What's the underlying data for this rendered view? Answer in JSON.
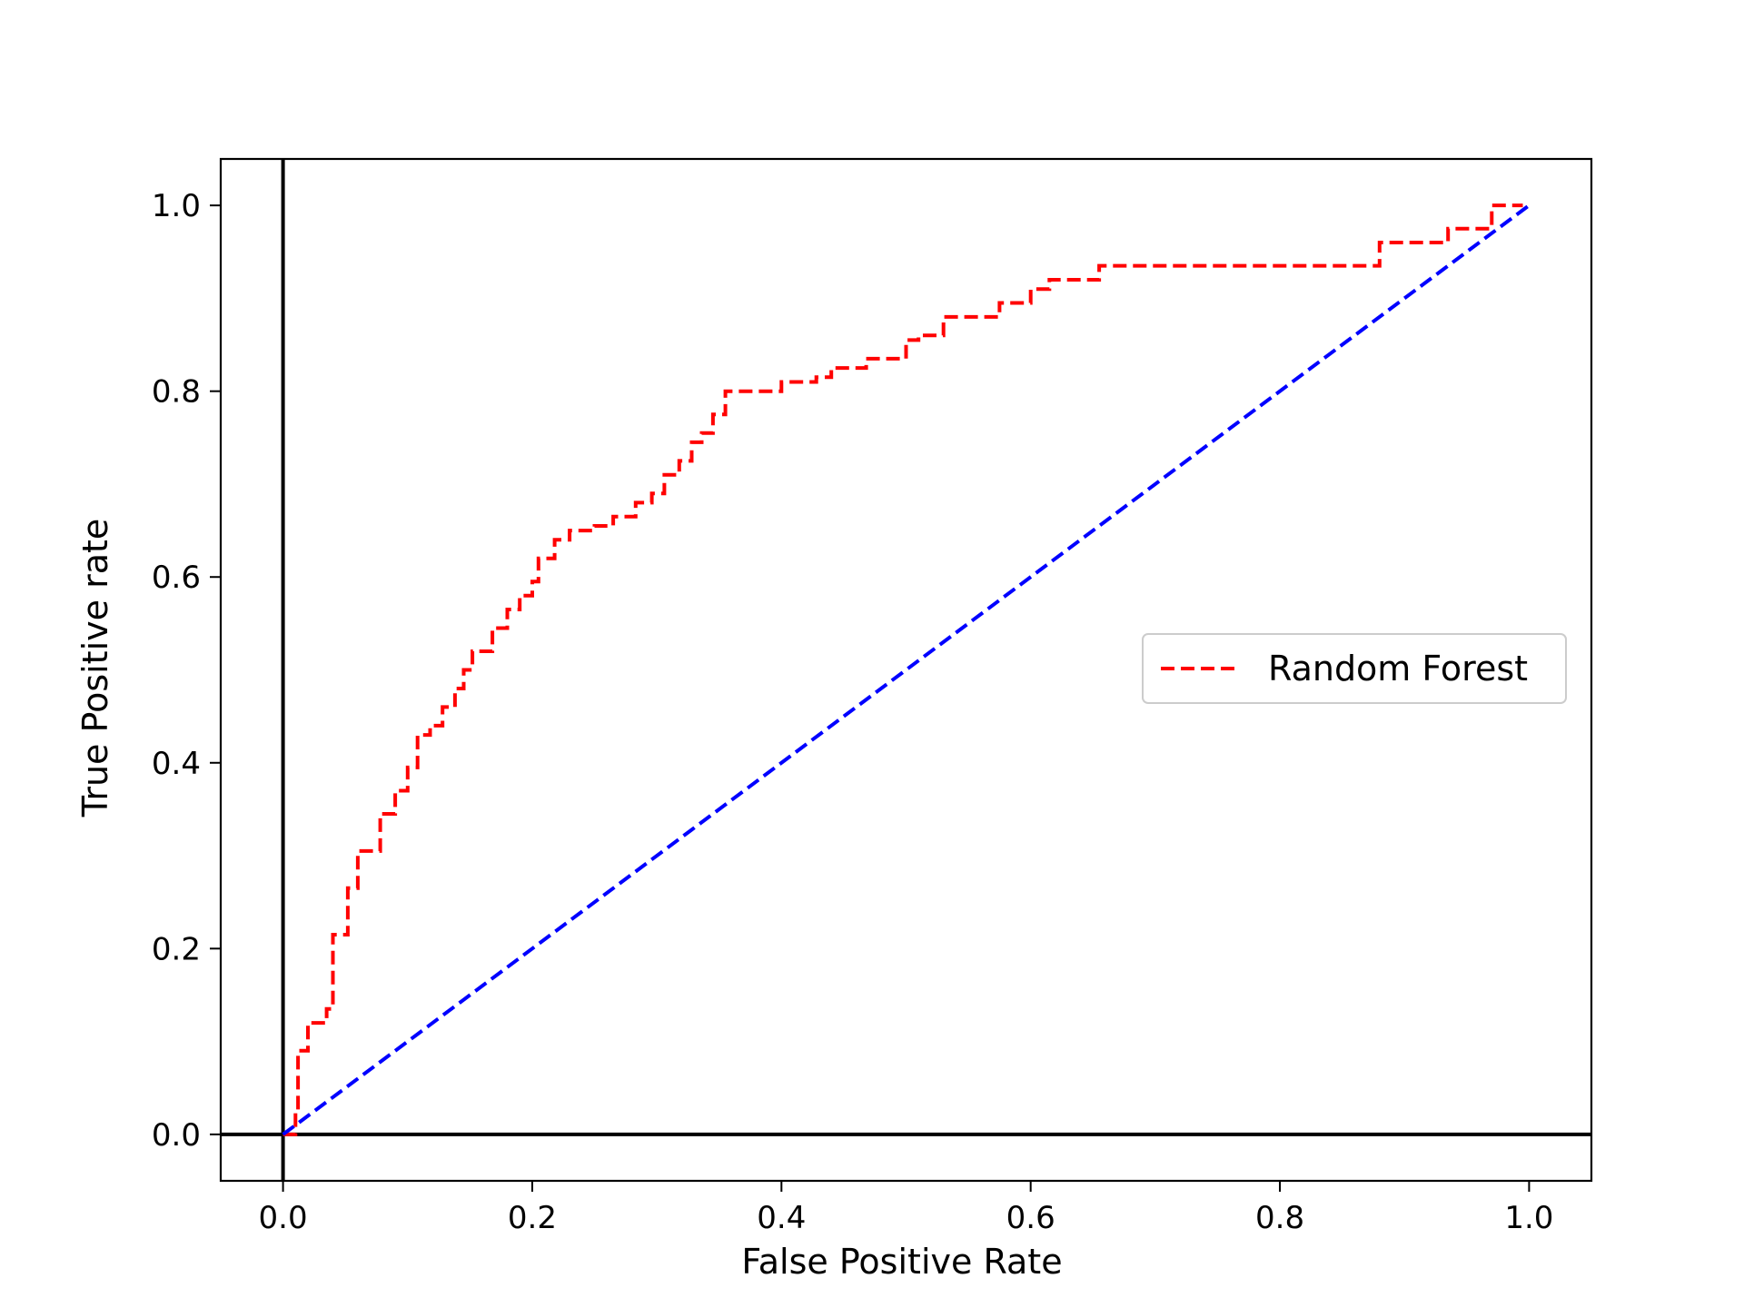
{
  "chart_data": {
    "type": "line",
    "title": "",
    "xlabel": "False Positive Rate",
    "ylabel": "True Positive rate",
    "xlim": [
      -0.05,
      1.05
    ],
    "ylim": [
      -0.05,
      1.05
    ],
    "xticks": [
      0.0,
      0.2,
      0.4,
      0.6,
      0.8,
      1.0
    ],
    "xtick_labels": [
      "0.0",
      "0.2",
      "0.4",
      "0.6",
      "0.8",
      "1.0"
    ],
    "yticks": [
      0.0,
      0.2,
      0.4,
      0.6,
      0.8,
      1.0
    ],
    "ytick_labels": [
      "0.0",
      "0.2",
      "0.4",
      "0.6",
      "0.8",
      "1.0"
    ],
    "grid": false,
    "reference_lines": [
      {
        "orientation": "horizontal",
        "value": 0.0,
        "color": "#000000"
      },
      {
        "orientation": "vertical",
        "value": 0.0,
        "color": "#000000"
      }
    ],
    "legend": {
      "placement": "center-right",
      "entries": [
        "Random Forest"
      ]
    },
    "series": [
      {
        "name": "Random Forest",
        "color": "#ff0000",
        "style": "dashed",
        "step": true,
        "x": [
          0.0,
          0.01,
          0.012,
          0.02,
          0.035,
          0.04,
          0.052,
          0.06,
          0.078,
          0.09,
          0.1,
          0.108,
          0.118,
          0.128,
          0.138,
          0.145,
          0.152,
          0.168,
          0.18,
          0.19,
          0.2,
          0.205,
          0.218,
          0.23,
          0.25,
          0.265,
          0.283,
          0.296,
          0.306,
          0.318,
          0.328,
          0.336,
          0.345,
          0.355,
          0.365,
          0.4,
          0.428,
          0.44,
          0.468,
          0.5,
          0.51,
          0.53,
          0.538,
          0.575,
          0.6,
          0.615,
          0.655,
          0.88,
          0.935,
          0.97,
          0.98,
          0.995
        ],
        "y": [
          0.0,
          0.025,
          0.09,
          0.12,
          0.135,
          0.215,
          0.265,
          0.305,
          0.345,
          0.37,
          0.395,
          0.43,
          0.44,
          0.46,
          0.48,
          0.5,
          0.52,
          0.545,
          0.565,
          0.58,
          0.595,
          0.62,
          0.64,
          0.65,
          0.655,
          0.665,
          0.68,
          0.69,
          0.71,
          0.725,
          0.745,
          0.755,
          0.775,
          0.8,
          0.8,
          0.81,
          0.815,
          0.825,
          0.835,
          0.855,
          0.86,
          0.88,
          0.88,
          0.895,
          0.91,
          0.92,
          0.935,
          0.96,
          0.975,
          1.0,
          1.0,
          1.0
        ]
      },
      {
        "name": "",
        "color": "#0000ff",
        "style": "dashed",
        "step": false,
        "x": [
          0.0,
          1.0
        ],
        "y": [
          0.0,
          1.0
        ]
      }
    ]
  }
}
